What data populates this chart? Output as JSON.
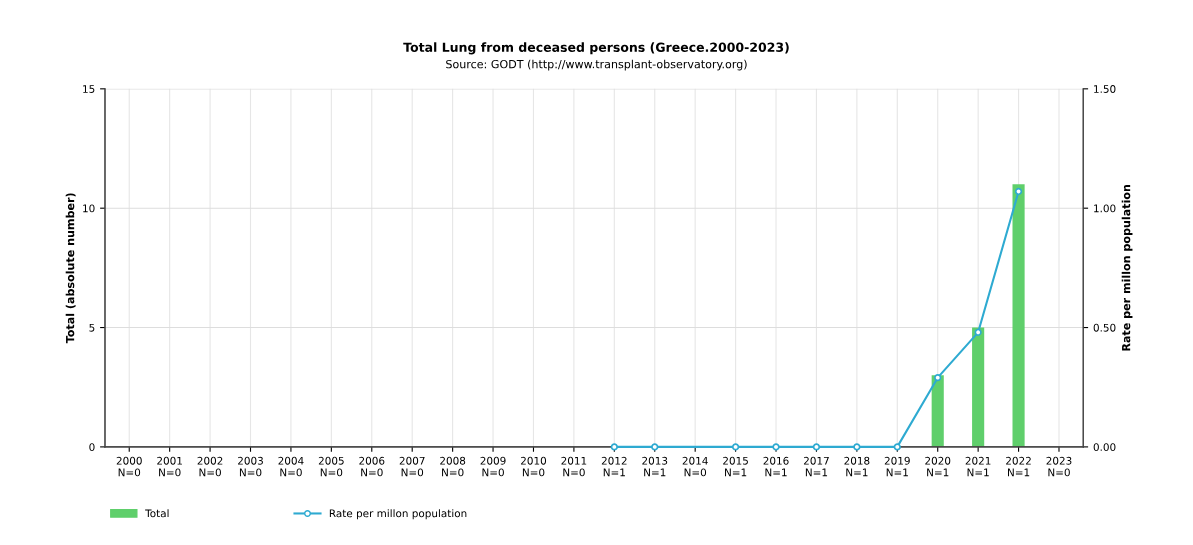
{
  "chart_data": {
    "type": "bar",
    "title": "Total Lung from deceased persons (Greece.2000-2023)",
    "subtitle": "Source: GODT (http://www.transplant-observatory.org)",
    "ylabel": "Total (absolute number)",
    "y2label": "Rate per millon population",
    "categories": [
      "2000\nN=0",
      "2001\nN=0",
      "2002\nN=0",
      "2003\nN=0",
      "2004\nN=0",
      "2005\nN=0",
      "2006\nN=0",
      "2007\nN=0",
      "2008\nN=0",
      "2009\nN=0",
      "2010\nN=0",
      "2011\nN=0",
      "2012\nN=1",
      "2013\nN=1",
      "2014\nN=0",
      "2015\nN=1",
      "2016\nN=1",
      "2017\nN=1",
      "2018\nN=1",
      "2019\nN=1",
      "2020\nN=1",
      "2021\nN=1",
      "2022\nN=1",
      "2023\nN=0"
    ],
    "series": [
      {
        "name": "Total",
        "color": "#5fcf6b",
        "values": [
          0,
          0,
          0,
          0,
          0,
          0,
          0,
          0,
          0,
          0,
          0,
          0,
          0,
          0,
          0,
          0,
          0,
          0,
          0,
          0,
          3,
          5,
          11,
          0
        ]
      },
      {
        "name": "Rate per millon population",
        "type": "line",
        "axis": "y2",
        "color": "#2eaad1",
        "marker": "circle",
        "values": [
          null,
          null,
          null,
          null,
          null,
          null,
          null,
          null,
          null,
          null,
          null,
          null,
          0,
          0,
          null,
          0,
          0,
          0,
          0,
          0,
          0.29,
          0.48,
          1.07,
          null
        ]
      }
    ],
    "ylim": [
      0,
      15
    ],
    "yticks": [
      0,
      5,
      10,
      15
    ],
    "y2lim": [
      0,
      1.5
    ],
    "y2ticks": [
      {
        "value": 0,
        "label": "0.00"
      },
      {
        "value": 0.5,
        "label": "0.50"
      },
      {
        "value": 1,
        "label": "1.00"
      },
      {
        "value": 1.5,
        "label": "1.50"
      }
    ],
    "grid": true,
    "legend": "bottom left"
  }
}
